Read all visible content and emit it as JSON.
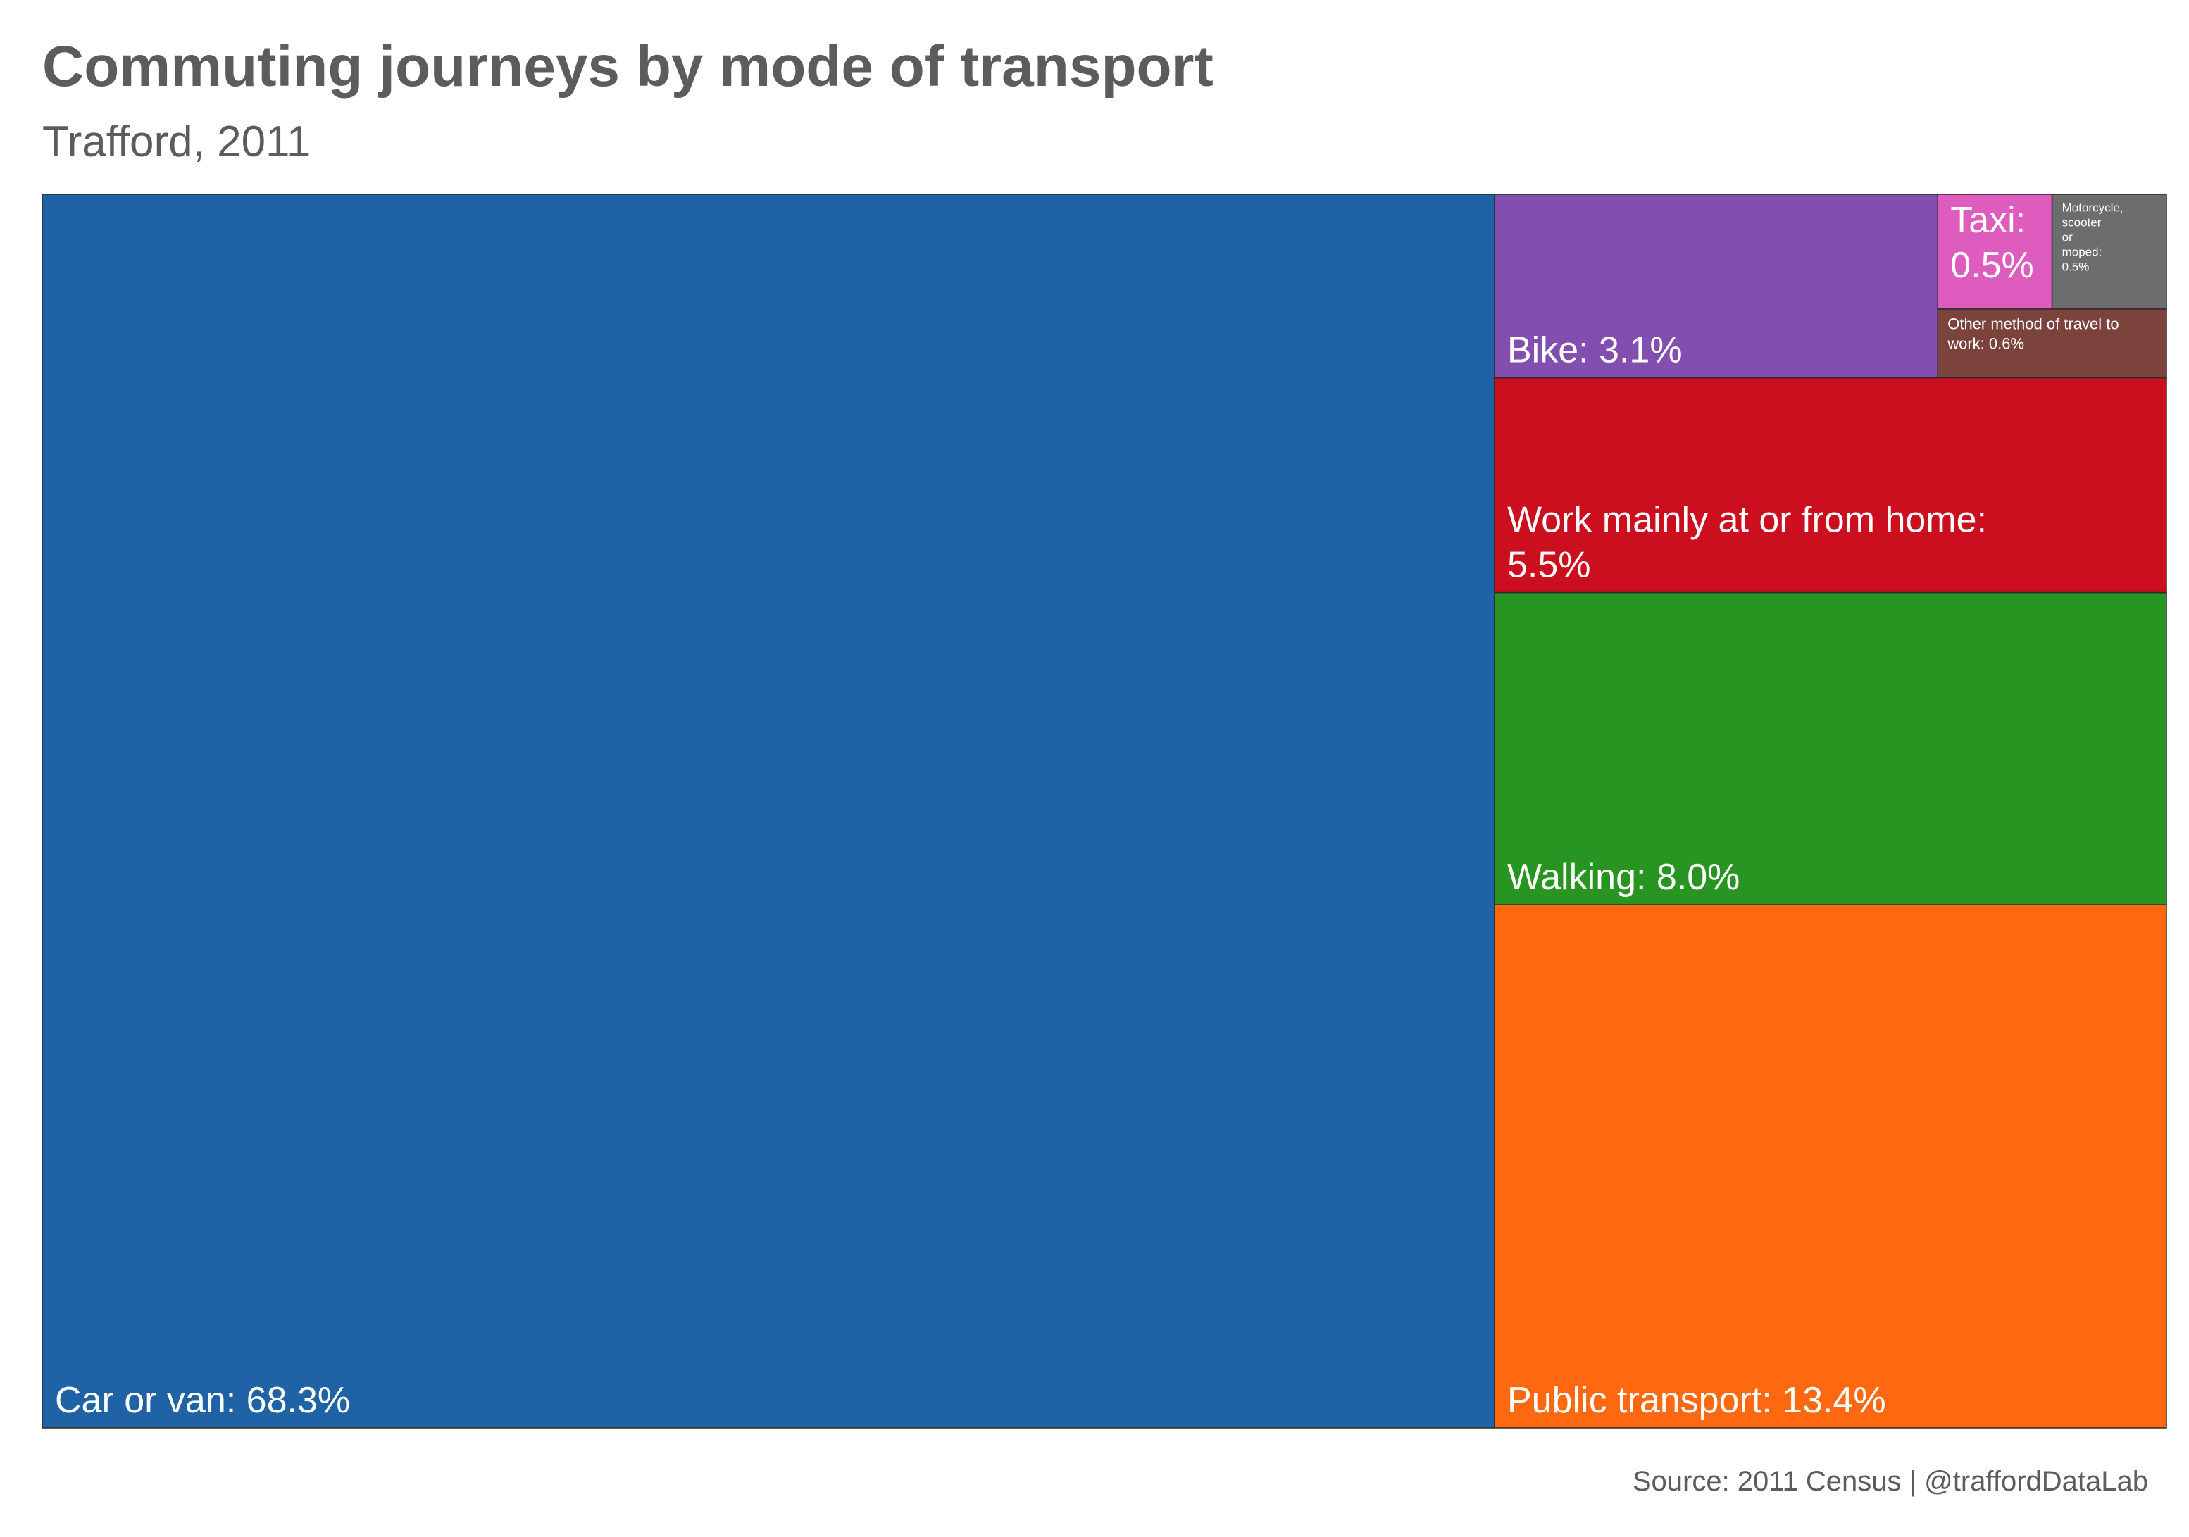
{
  "title": "Commuting journeys by mode of transport",
  "subtitle": "Trafford, 2011",
  "caption": "Source: 2011 Census | @traffordDataLab",
  "chart_data": {
    "type": "treemap",
    "title": "Commuting journeys by mode of transport",
    "subtitle": "Trafford, 2011",
    "unit": "%",
    "items": [
      {
        "name": "Car or van",
        "value": 68.3,
        "label": [
          "Car or van: 68.3%"
        ],
        "color": "#1f62a5"
      },
      {
        "name": "Public transport",
        "value": 13.4,
        "label": [
          "Public transport: 13.4%"
        ],
        "color": "#fe6810"
      },
      {
        "name": "Walking",
        "value": 8.0,
        "label": [
          "Walking: 8.0%"
        ],
        "color": "#289522"
      },
      {
        "name": "Work mainly at or from home",
        "value": 5.5,
        "label": [
          "Work mainly at or from home:",
          "5.5%"
        ],
        "color": "#cb0f1f"
      },
      {
        "name": "Bike",
        "value": 3.1,
        "label": [
          "Bike: 3.1%"
        ],
        "color": "#824fb1"
      },
      {
        "name": "Other method of travel to work",
        "value": 0.6,
        "label": [
          "Other method of travel to",
          "work: 0.6%"
        ],
        "color": "#7b433c"
      },
      {
        "name": "Taxi",
        "value": 0.5,
        "label": [
          "Taxi:",
          "0.5%"
        ],
        "color": "#de5cbd"
      },
      {
        "name": "Motorcycle, scooter or moped",
        "value": 0.5,
        "label": [
          "Motorcycle,",
          "scooter",
          "or",
          "moped:",
          "0.5%"
        ],
        "color": "#6d6d6d"
      }
    ]
  }
}
